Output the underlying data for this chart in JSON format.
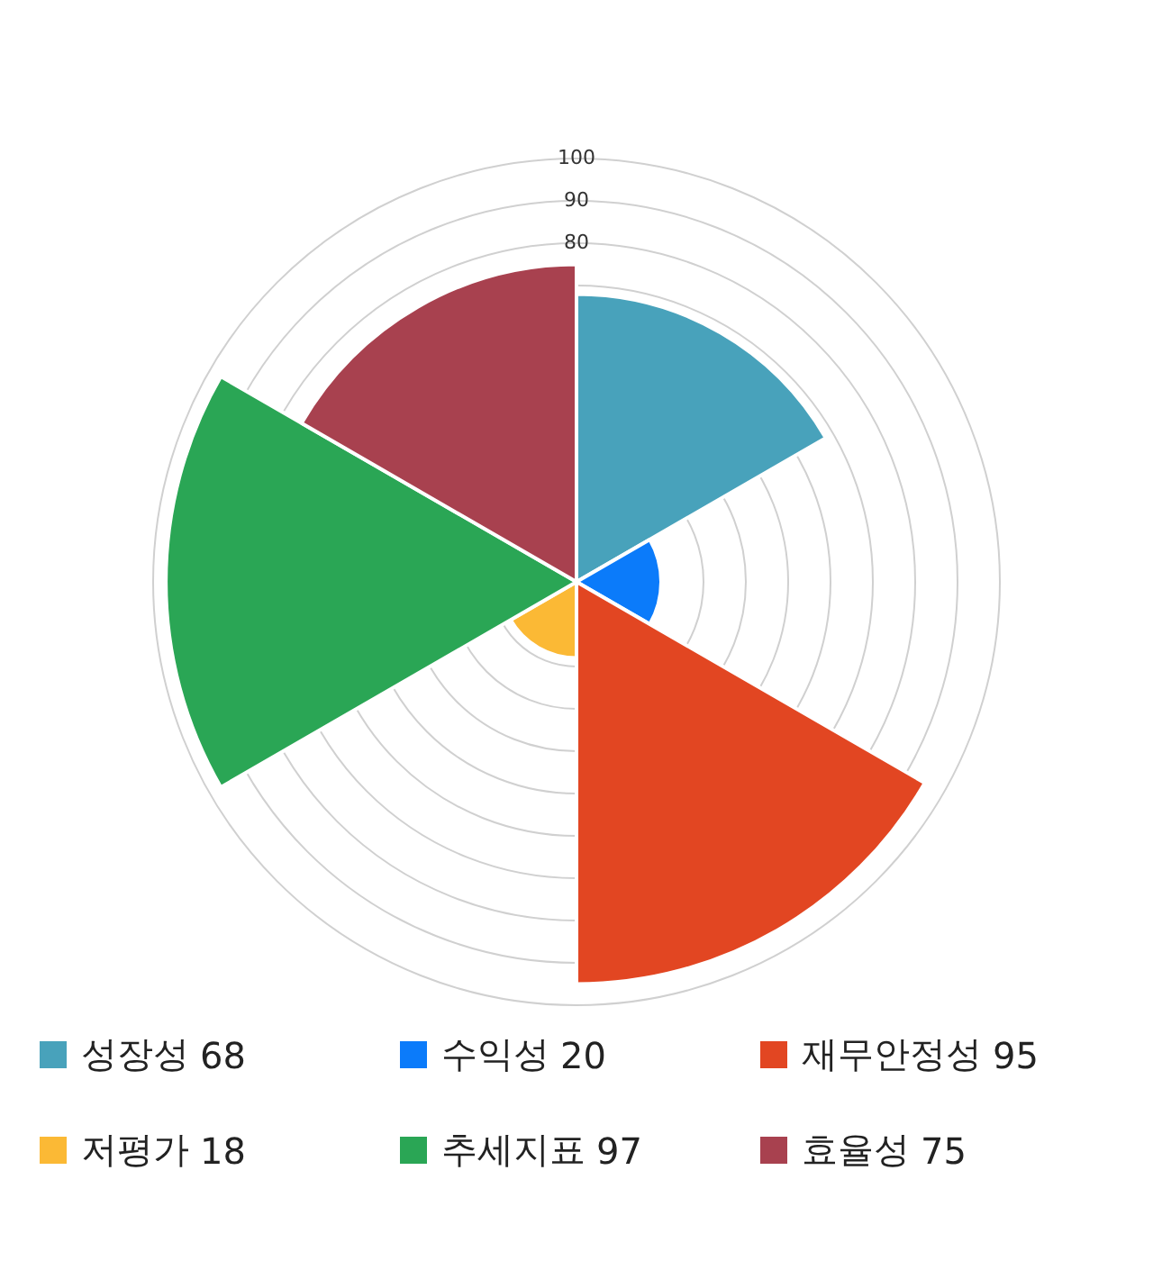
{
  "chart_data": {
    "type": "other",
    "categories": [
      "성장성",
      "수익성",
      "재무안정성",
      "저평가",
      "추세지표",
      "효율성"
    ],
    "values": [
      68,
      20,
      95,
      18,
      97,
      75
    ],
    "colors": [
      "#48a2bb",
      "#0b7bfa",
      "#e24622",
      "#fbb935",
      "#2aa655",
      "#a8414f"
    ],
    "annotations": [
      "100",
      "90",
      "80"
    ],
    "data_labels": true
  }
}
